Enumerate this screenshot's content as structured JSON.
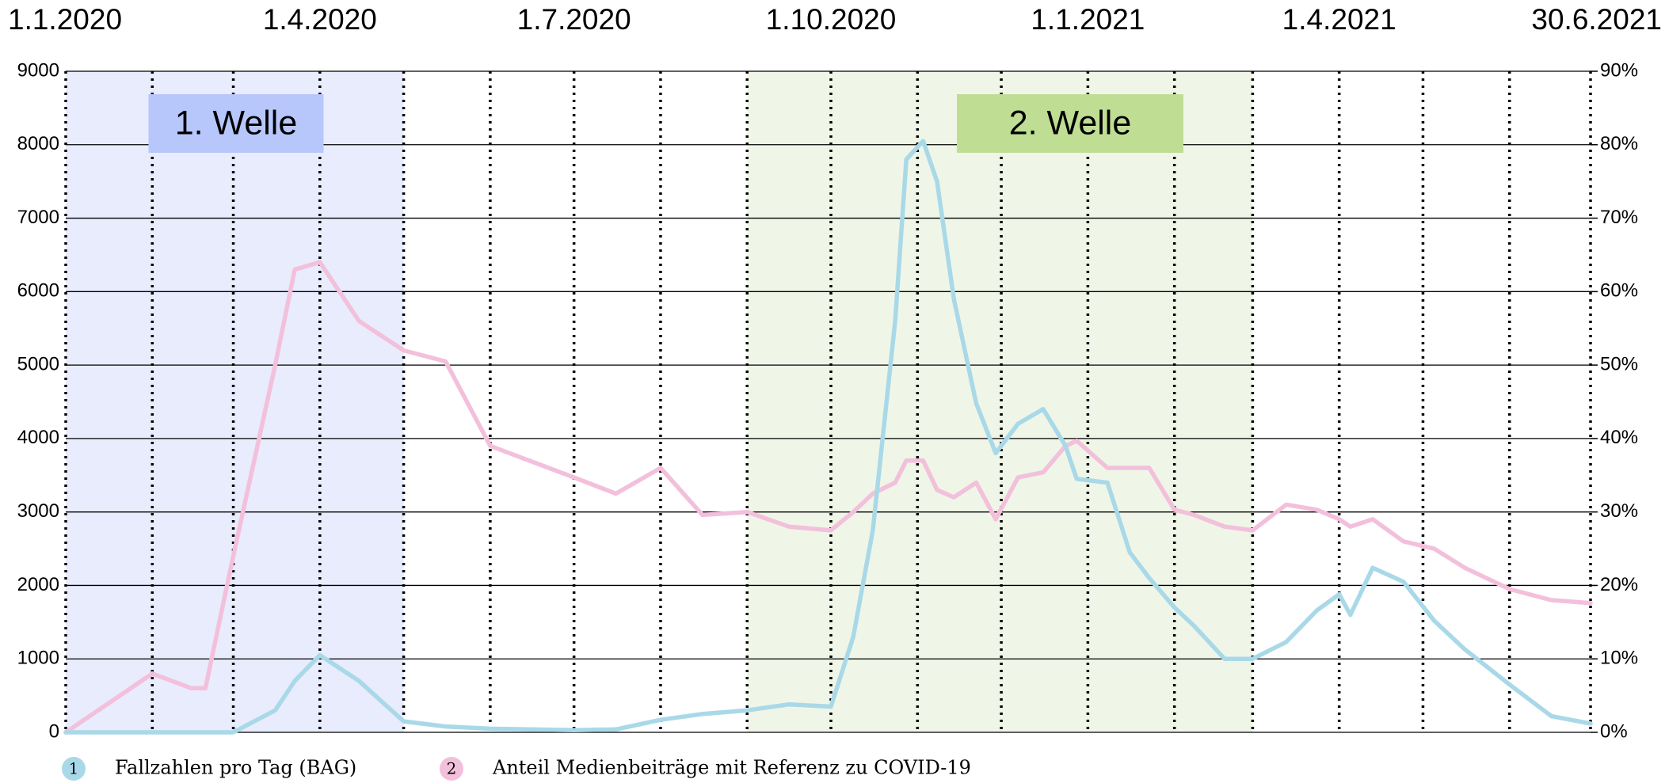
{
  "chart_data": {
    "type": "line",
    "x": [
      "2020-01-01",
      "2020-02-01",
      "2020-02-15",
      "2020-02-20",
      "2020-03-01",
      "2020-03-16",
      "2020-03-23",
      "2020-04-01",
      "2020-04-15",
      "2020-05-01",
      "2020-05-16",
      "2020-06-01",
      "2020-07-01",
      "2020-07-16",
      "2020-08-01",
      "2020-08-16",
      "2020-09-01",
      "2020-09-16",
      "2020-10-01",
      "2020-10-09",
      "2020-10-16",
      "2020-10-24",
      "2020-10-28",
      "2020-11-03",
      "2020-11-08",
      "2020-11-14",
      "2020-11-22",
      "2020-11-29",
      "2020-12-07",
      "2020-12-16",
      "2020-12-24",
      "2020-12-28",
      "2021-01-08",
      "2021-01-16",
      "2021-01-23",
      "2021-02-01",
      "2021-02-08",
      "2021-02-19",
      "2021-03-01",
      "2021-03-13",
      "2021-03-24",
      "2021-04-01",
      "2021-04-05",
      "2021-04-13",
      "2021-04-24",
      "2021-05-05",
      "2021-05-16",
      "2021-06-01",
      "2021-06-16",
      "2021-06-30"
    ],
    "series": [
      {
        "name": "Fallzahlen pro Tag (BAG)",
        "badge": "1",
        "color": "#a9d9e8",
        "values": [
          0,
          0,
          0,
          0,
          0,
          300,
          700,
          1050,
          700,
          150,
          80,
          50,
          30,
          40,
          170,
          250,
          300,
          380,
          350,
          1300,
          2750,
          5600,
          7800,
          8050,
          7500,
          5900,
          4480,
          3800,
          4200,
          4400,
          3900,
          3450,
          3400,
          2450,
          2100,
          1700,
          1450,
          1000,
          1000,
          1230,
          1660,
          1880,
          1600,
          2240,
          2050,
          1520,
          1130,
          650,
          220,
          120
        ]
      },
      {
        "name": "Anteil Medienbeiträge mit Referenz zu COVID-19",
        "badge": "2",
        "color": "#f3c0dc",
        "axis": "y2",
        "values": [
          0,
          8,
          6,
          6,
          24,
          50,
          63,
          64,
          56,
          52,
          50.5,
          39,
          34.7,
          32.5,
          36,
          29.6,
          30,
          28,
          27.5,
          30,
          32.5,
          34,
          37,
          37,
          33,
          32,
          34,
          29,
          34.7,
          35.4,
          39,
          39.7,
          36,
          36,
          36,
          30.3,
          29.6,
          28,
          27.5,
          31,
          30.3,
          29,
          28,
          29,
          26,
          25,
          22.4,
          19.5,
          18,
          17.6
        ]
      }
    ],
    "xlim": [
      "2020-01-01",
      "2021-06-30"
    ],
    "xticks": [
      {
        "value": "2020-01-01",
        "label": "1.1.2020"
      },
      {
        "value": "2020-04-01",
        "label": "1.4.2020"
      },
      {
        "value": "2020-07-01",
        "label": "1.7.2020"
      },
      {
        "value": "2020-10-01",
        "label": "1.10.2020"
      },
      {
        "value": "2021-01-01",
        "label": "1.1.2021"
      },
      {
        "value": "2021-04-01",
        "label": "1.4.2021"
      },
      {
        "value": "2021-06-30",
        "label": "30.6.2021"
      }
    ],
    "xgrid": [
      "2020-01-01",
      "2020-02-01",
      "2020-03-01",
      "2020-04-01",
      "2020-05-01",
      "2020-06-01",
      "2020-07-01",
      "2020-08-01",
      "2020-09-01",
      "2020-10-01",
      "2020-11-01",
      "2020-12-01",
      "2021-01-01",
      "2021-02-01",
      "2021-03-01",
      "2021-04-01",
      "2021-05-01",
      "2021-06-01",
      "2021-06-30"
    ],
    "ylim": [
      0,
      9000
    ],
    "yticks": [
      0,
      1000,
      2000,
      3000,
      4000,
      5000,
      6000,
      7000,
      8000,
      9000
    ],
    "y2lim": [
      0,
      90
    ],
    "y2ticks": [
      {
        "value": 0,
        "label": "0%"
      },
      {
        "value": 10,
        "label": "10%"
      },
      {
        "value": 20,
        "label": "20%"
      },
      {
        "value": 30,
        "label": "30%"
      },
      {
        "value": 40,
        "label": "40%"
      },
      {
        "value": 50,
        "label": "50%"
      },
      {
        "value": 60,
        "label": "60%"
      },
      {
        "value": 70,
        "label": "70%"
      },
      {
        "value": 80,
        "label": "80%"
      },
      {
        "value": 90,
        "label": "90%"
      }
    ],
    "grid": true,
    "annotations": [
      {
        "label": "1. Welle",
        "start": "2020-01-01",
        "end": "2020-05-01",
        "color": "#e8ecfd",
        "label_color": "#b8c7fb"
      },
      {
        "label": "2. Welle",
        "start": "2020-09-01",
        "end": "2021-03-01",
        "color": "#eff6e7",
        "label_color": "#bfde94"
      }
    ]
  }
}
